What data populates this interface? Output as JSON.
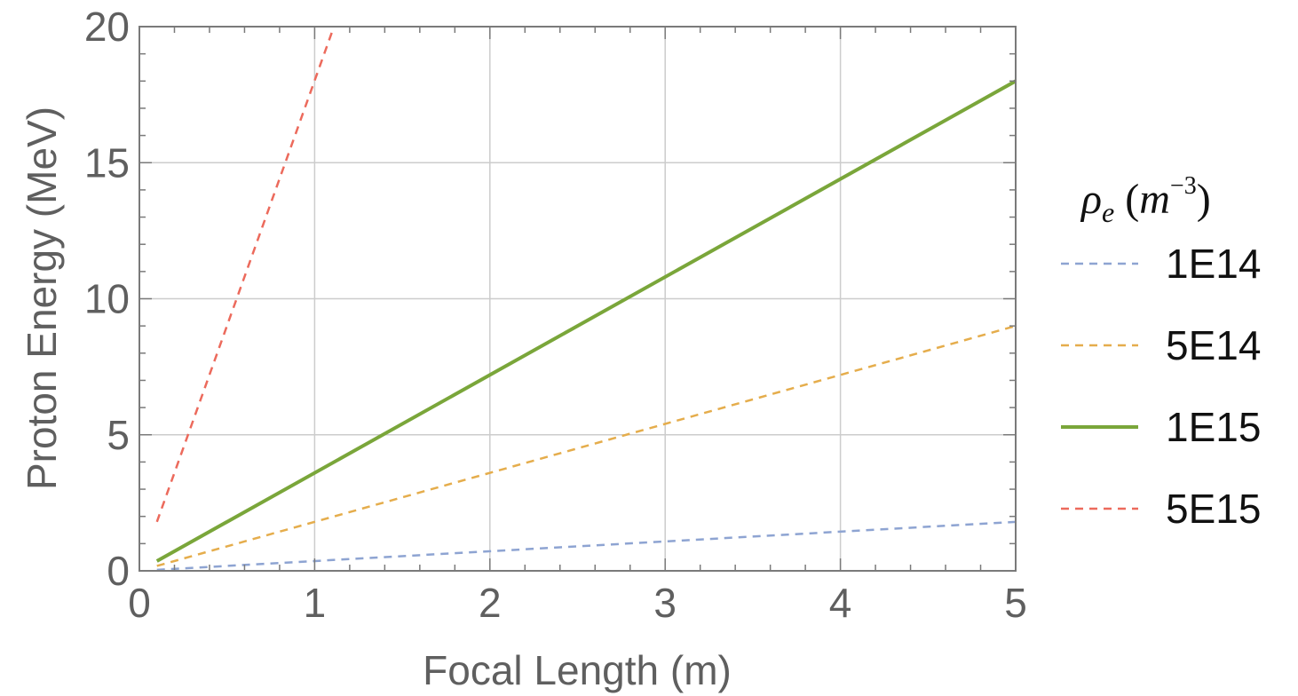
{
  "chart_data": {
    "type": "line",
    "xlabel": "Focal Length (m)",
    "ylabel": "Proton Energy (MeV)",
    "xlim": [
      0,
      5
    ],
    "ylim": [
      0,
      20
    ],
    "x_ticks": [
      "0",
      "1",
      "2",
      "3",
      "4",
      "5"
    ],
    "y_ticks": [
      "0",
      "5",
      "10",
      "15",
      "20"
    ],
    "grid": true,
    "legend_position": "right",
    "legend_title": {
      "symbol": "ρ",
      "subscript": "e",
      "unit_open": " (",
      "unit_base": "m",
      "unit_exponent": "−3",
      "unit_close": ")"
    },
    "series": [
      {
        "name": "1E14",
        "x": [
          0.1,
          5
        ],
        "y": [
          0.036,
          1.8
        ],
        "color": "#8ea4d2",
        "dash": true
      },
      {
        "name": "5E14",
        "x": [
          0.1,
          5
        ],
        "y": [
          0.18,
          9.0
        ],
        "color": "#e5ad4c",
        "dash": true
      },
      {
        "name": "1E15",
        "x": [
          0.1,
          5
        ],
        "y": [
          0.36,
          18.0
        ],
        "color": "#7aa63a",
        "dash": false
      },
      {
        "name": "5E15",
        "x": [
          0.1,
          1.11
        ],
        "y": [
          1.8,
          20.0
        ],
        "color": "#ec6a5c",
        "dash": true
      }
    ]
  }
}
